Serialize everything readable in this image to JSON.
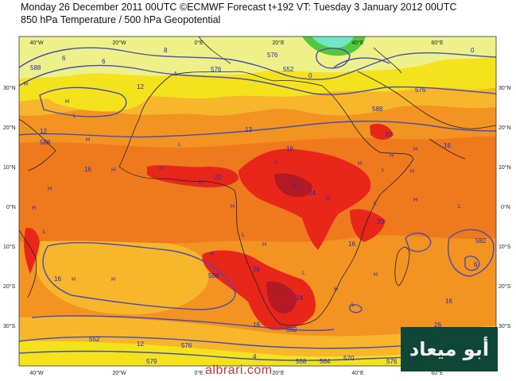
{
  "header": {
    "line1": "Monday 26 December 2011 00UTC ©ECMWF Forecast t+192 VT: Tuesday 3 January 2012 00UTC",
    "line2": "850 hPa Temperature / 500 hPa Geopotential"
  },
  "axes": {
    "lon_top": [
      "40°W",
      "20°W",
      "0°E",
      "20°E",
      "40°E",
      "60°E"
    ],
    "lon_bottom": [
      "40°W",
      "20°W",
      "0°E",
      "20°E",
      "40°E",
      "60°E"
    ],
    "lat_left": [
      "30°N",
      "20°N",
      "10°N",
      "0°N",
      "10°S",
      "20°S",
      "30°S"
    ],
    "lat_right": [
      "30°N",
      "20°N",
      "10°N",
      "0°N",
      "10°S",
      "20°S",
      "30°S"
    ]
  },
  "contour_labels": [
    {
      "text": "588",
      "color": "#1c2bb5"
    },
    {
      "text": "6",
      "color": "#1c2bb5"
    },
    {
      "text": "6",
      "color": "#1c2bb5"
    },
    {
      "text": "8",
      "color": "#1c2bb5"
    },
    {
      "text": "12",
      "color": "#1c2bb5"
    },
    {
      "text": "576",
      "color": "#1c2bb5"
    },
    {
      "text": "4",
      "color": "#1c2bb5"
    },
    {
      "text": "576",
      "color": "#1c2bb5"
    },
    {
      "text": "552",
      "color": "#1c2bb5"
    },
    {
      "text": "0",
      "color": "#1c2bb5"
    },
    {
      "text": "576",
      "color": "#1c2bb5"
    },
    {
      "text": "0",
      "color": "#1c2bb5"
    },
    {
      "text": "12",
      "color": "#1c2bb5"
    },
    {
      "text": "588",
      "color": "#1c2bb5"
    },
    {
      "text": "13",
      "color": "#1c2bb5"
    },
    {
      "text": "16",
      "color": "#1c2bb5"
    },
    {
      "text": "588",
      "color": "#1c2bb5"
    },
    {
      "text": "20",
      "color": "#1c2bb5"
    },
    {
      "text": "16",
      "color": "#1c2bb5"
    },
    {
      "text": "16",
      "color": "#1c2bb5"
    },
    {
      "text": "20",
      "color": "#1c2bb5"
    },
    {
      "text": "24",
      "color": "#1c2bb5"
    },
    {
      "text": "20",
      "color": "#1c2bb5"
    },
    {
      "text": "582",
      "color": "#1c2bb5"
    },
    {
      "text": "6",
      "color": "#1c2bb5"
    },
    {
      "text": "16",
      "color": "#1c2bb5"
    },
    {
      "text": "588",
      "color": "#1c2bb5"
    },
    {
      "text": "28",
      "color": "#1c2bb5"
    },
    {
      "text": "24",
      "color": "#1c2bb5"
    },
    {
      "text": "16",
      "color": "#1c2bb5"
    },
    {
      "text": "16",
      "color": "#1c2bb5"
    },
    {
      "text": "16",
      "color": "#1c2bb5"
    },
    {
      "text": "26",
      "color": "#1c2bb5"
    },
    {
      "text": "582",
      "color": "#1c2bb5"
    },
    {
      "text": "12",
      "color": "#1c2bb5"
    },
    {
      "text": "576",
      "color": "#1c2bb5"
    },
    {
      "text": "552",
      "color": "#1c2bb5"
    },
    {
      "text": "579",
      "color": "#1c2bb5"
    },
    {
      "text": "4",
      "color": "#1c2bb5"
    },
    {
      "text": "564",
      "color": "#1c2bb5"
    },
    {
      "text": "570",
      "color": "#1c2bb5"
    },
    {
      "text": "576",
      "color": "#1c2bb5"
    },
    {
      "text": "558",
      "color": "#1c2bb5"
    }
  ],
  "pressure_markers": [
    "H",
    "H",
    "H",
    "L",
    "H",
    "H",
    "H",
    "L",
    "H",
    "H",
    "H",
    "L",
    "H",
    "H",
    "H",
    "L",
    "H",
    "H",
    "L",
    "H",
    "L",
    "H",
    "H",
    "H",
    "L",
    "H",
    "L",
    "H",
    "H",
    "L",
    "H",
    "L"
  ],
  "colors": {
    "yellow": "#f4e21c",
    "light_yellow": "#eef08a",
    "light_orange": "#f8b62d",
    "orange": "#f39322",
    "dark_orange": "#ef7a1e",
    "red": "#e8271a",
    "dark_red": "#b31a24",
    "green": "#52c93c",
    "cyan": "#6fe7c4",
    "contour": "#4a4ea8"
  },
  "watermark": "albrari.com",
  "logo_text": "أبو ميعاد"
}
